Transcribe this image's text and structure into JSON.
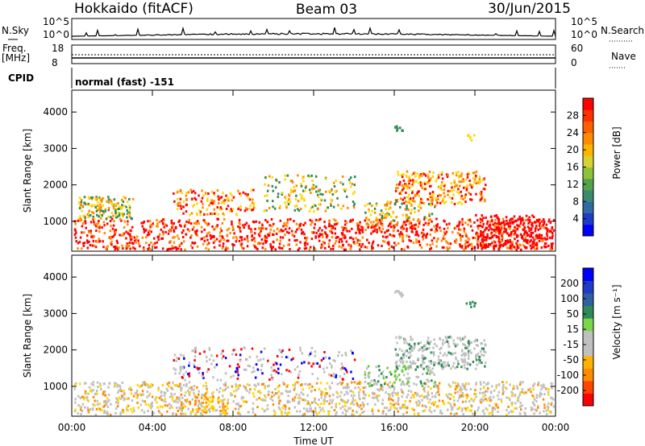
{
  "header": {
    "station": "Hokkaido (fitACF)",
    "beam": "Beam 03",
    "date": "30/Jun/2015"
  },
  "summary_panel": {
    "nsky_label": "N.Sky",
    "nsearch_label": "N.Search",
    "left_ticks": [
      "10^5",
      "10^0"
    ],
    "right_ticks": [
      "10^5",
      "10^0"
    ],
    "freq_label": "Freq.",
    "freq_unit": "[MHz]",
    "freq_ticks": [
      "18",
      "8"
    ],
    "nave_label": "Nave",
    "nave_ticks": [
      "60",
      "0"
    ],
    "cpid_label": "CPID",
    "cpid_value": "normal (fast) -151"
  },
  "colors": {
    "scale_red": "#ff0000",
    "scale_orange": "#ff8c00",
    "scale_yellow": "#ffd700",
    "scale_green": "#2e8b57",
    "scale_blue": "#0000ff",
    "gs_gray": "#c0c0c0"
  },
  "chart_data": [
    {
      "type": "heatmap",
      "name": "power",
      "ylabel": "Slant Range [km]",
      "yticks": [
        1000,
        2000,
        3000,
        4000
      ],
      "ylim": [
        180,
        4600
      ],
      "xlim": [
        0,
        24
      ],
      "colorbar_label": "Power [dB]",
      "colorbar_ticks": [
        "4",
        "8",
        "12",
        "16",
        "20",
        "24",
        "28"
      ],
      "colorbar_range": [
        0,
        30
      ]
    },
    {
      "type": "heatmap",
      "name": "velocity",
      "ylabel": "Slant Range [km]",
      "yticks": [
        1000,
        2000,
        3000,
        4000
      ],
      "ylim": [
        180,
        4600
      ],
      "xlim": [
        0,
        24
      ],
      "xlabel": "Time UT",
      "xticks": [
        "00:00",
        "04:00",
        "08:00",
        "12:00",
        "16:00",
        "20:00",
        "00:00"
      ],
      "colorbar_label": "Velocity [m s⁻¹]",
      "colorbar_ticks": [
        "200",
        "100",
        "50",
        "15",
        "-15",
        "-50",
        "-100",
        "-200"
      ]
    }
  ]
}
